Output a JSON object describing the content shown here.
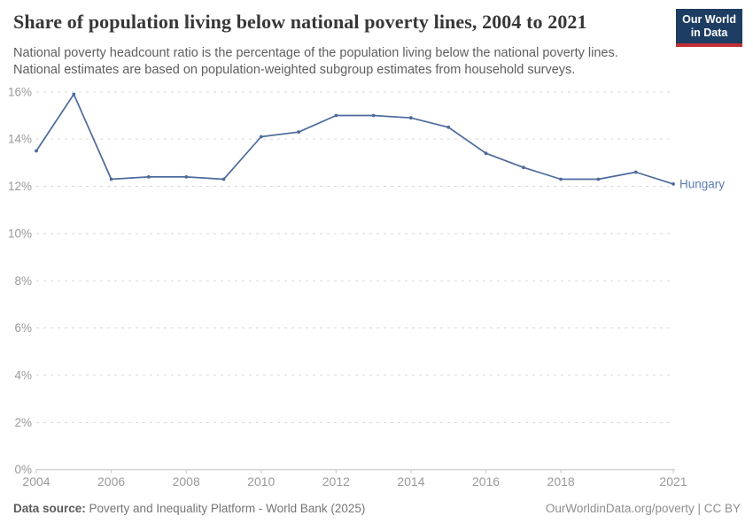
{
  "header": {
    "title": "Share of population living below national poverty lines, 2004 to 2021",
    "subtitle_line1": "National poverty headcount ratio is the percentage of the population living below the national poverty lines.",
    "subtitle_line2": "National estimates are based on population-weighted subgroup estimates from household surveys.",
    "logo": {
      "line1": "Our World",
      "line2": "in Data",
      "bg_color": "#1d3d63",
      "accent_color": "#bf3036"
    }
  },
  "chart_data": {
    "type": "line",
    "title": "Share of population living below national poverty lines, 2004 to 2021",
    "xlabel": "",
    "ylabel": "",
    "ylim": [
      0,
      16
    ],
    "ytick_step": 2,
    "ytick_suffix": "%",
    "xticks": [
      2004,
      2006,
      2008,
      2010,
      2012,
      2014,
      2016,
      2018,
      2021
    ],
    "grid": "horizontal-dashed",
    "legend_position": "end-of-line-label",
    "series": [
      {
        "name": "Hungary",
        "color": "#4c6a9c",
        "label_color": "#5b7bb2",
        "x": [
          2004,
          2005,
          2006,
          2007,
          2008,
          2009,
          2010,
          2011,
          2012,
          2013,
          2014,
          2015,
          2016,
          2017,
          2018,
          2019,
          2020,
          2021
        ],
        "values": [
          13.5,
          15.9,
          12.3,
          12.4,
          12.4,
          12.3,
          14.1,
          14.3,
          15.0,
          15.0,
          14.9,
          14.5,
          13.4,
          12.8,
          12.3,
          12.3,
          12.6,
          12.1
        ]
      }
    ],
    "style": {
      "grid_color": "#d9d9d9",
      "axis_color": "#c4c4c4",
      "tick_label_color": "#9a9a9a"
    }
  },
  "footer": {
    "source_label": "Data source:",
    "source_text": " Poverty and Inequality Platform - World Bank (2025)",
    "link_text": "OurWorldinData.org/poverty | CC BY"
  }
}
